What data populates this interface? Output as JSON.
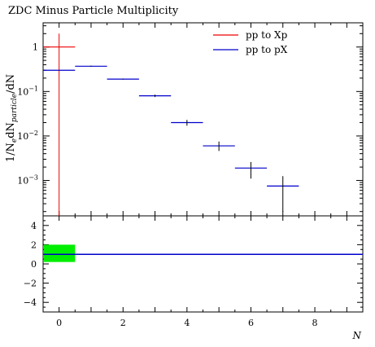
{
  "chart_data": {
    "type": "scatter",
    "title": "ZDC Minus Particle Multiplicity",
    "xlabel": "N",
    "ylabel_parts": [
      "1/N",
      "e",
      "dN",
      "particle",
      "/dN"
    ],
    "xlim": [
      -0.5,
      9.5
    ],
    "main": {
      "yscale": "log",
      "ylim": [
        0.00016,
        3.5
      ],
      "yticks": [
        {
          "value": 1,
          "label": "1"
        },
        {
          "value": 0.1,
          "label": "10",
          "exp": "−1"
        },
        {
          "value": 0.01,
          "label": "10",
          "exp": "−2"
        },
        {
          "value": 0.001,
          "label": "10",
          "exp": "−3"
        }
      ]
    },
    "ratio": {
      "ylim": [
        -5,
        5
      ],
      "yticks": [
        4,
        2,
        0,
        -2,
        -4
      ],
      "band": {
        "x": [
          -0.5,
          0.5
        ],
        "y": [
          0.2,
          2.0
        ],
        "color": "#00ee00"
      },
      "reference": 1.0
    },
    "xticks": [
      0,
      2,
      4,
      6,
      8
    ],
    "series": [
      {
        "name": "pp to Xp",
        "color": "#ee0000",
        "points": [
          {
            "x": 0,
            "xlo": -0.5,
            "xhi": 0.5,
            "y": 1.0,
            "ylo": 0.0001,
            "yhi": 2.0
          }
        ]
      },
      {
        "name": "pp to pX",
        "color": "#0000cc",
        "points": [
          {
            "x": 0,
            "xlo": -0.5,
            "xhi": 0.5,
            "y": 0.3,
            "ylo": 0.3,
            "yhi": 0.3
          },
          {
            "x": 1,
            "xlo": 0.5,
            "xhi": 1.5,
            "y": 0.37,
            "ylo": 0.36,
            "yhi": 0.38
          },
          {
            "x": 2,
            "xlo": 1.5,
            "xhi": 2.5,
            "y": 0.19,
            "ylo": 0.185,
            "yhi": 0.195
          },
          {
            "x": 3,
            "xlo": 2.5,
            "xhi": 3.5,
            "y": 0.08,
            "ylo": 0.075,
            "yhi": 0.085
          },
          {
            "x": 4,
            "xlo": 3.5,
            "xhi": 4.5,
            "y": 0.02,
            "ylo": 0.017,
            "yhi": 0.023
          },
          {
            "x": 5,
            "xlo": 4.5,
            "xhi": 5.5,
            "y": 0.006,
            "ylo": 0.0046,
            "yhi": 0.0075
          },
          {
            "x": 6,
            "xlo": 5.5,
            "xhi": 6.5,
            "y": 0.0019,
            "ylo": 0.0011,
            "yhi": 0.0026
          },
          {
            "x": 7,
            "xlo": 6.5,
            "xhi": 7.5,
            "y": 0.00075,
            "ylo": 0.0002,
            "yhi": 0.00125
          }
        ]
      }
    ]
  }
}
